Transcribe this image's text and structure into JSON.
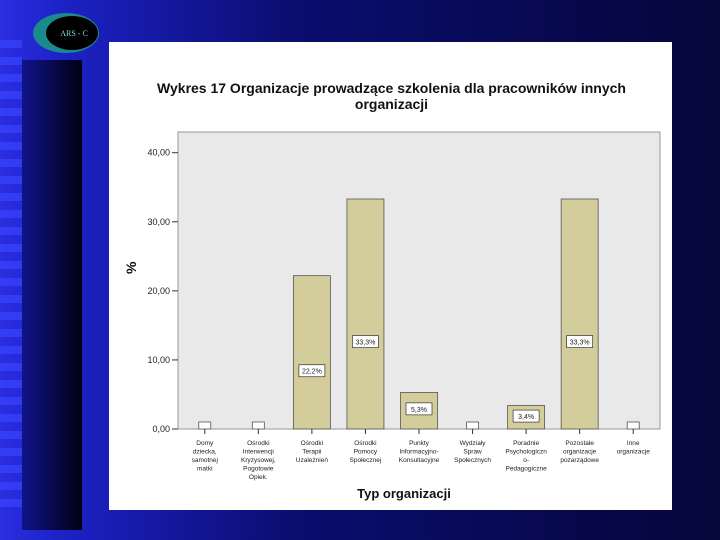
{
  "logo": {
    "text": "ARS - C",
    "ring_color": "#1a8a8a",
    "fill_color": "#000000"
  },
  "chart_data": {
    "type": "bar",
    "title": "Wykres 17 Organizacje prowadzące szkolenia dla pracowników innych organizacji",
    "title_lines": [
      "Wykres 17 Organizacje prowadzące szkolenia dla pracowników innych",
      "organizacji"
    ],
    "xlabel": "Typ organizacji",
    "ylabel": "%",
    "ylim": [
      0,
      43
    ],
    "yticks": [
      0,
      10,
      20,
      30,
      40
    ],
    "ytick_labels": [
      "0,00",
      "10,00",
      "20,00",
      "30,00",
      "40,00"
    ],
    "grid": false,
    "bar_color": "#d2cd9a",
    "plot_bg": "#e9e9e9",
    "categories": [
      [
        "Domy",
        "dziecka,",
        "samotnej",
        "matki"
      ],
      [
        "Ośrodki",
        "Interwencji",
        "Kryzysowej,",
        "Pogotowie",
        "Opiek."
      ],
      [
        "Ośrodki",
        "Terapii",
        "Uzależnień"
      ],
      [
        "Ośrodki",
        "Pomocy",
        "Społecznej"
      ],
      [
        "Punkty",
        "Informacyjno-",
        "Konsultacyjne"
      ],
      [
        "Wydziały",
        "Spraw",
        "Społecznych"
      ],
      [
        "Poradnie",
        "Psychologiczn",
        "o-",
        "Pedagogiczne"
      ],
      [
        "Pozostałe",
        "organizacje",
        "pozarządowe"
      ],
      [
        "Inne",
        "organizacje"
      ]
    ],
    "values": [
      0,
      0,
      22.2,
      33.3,
      5.3,
      0,
      3.4,
      33.3,
      0
    ],
    "data_labels": [
      "",
      "",
      "22,2%",
      "33,3%",
      "5,3%",
      "",
      "3,4%",
      "33,3%",
      ""
    ]
  }
}
